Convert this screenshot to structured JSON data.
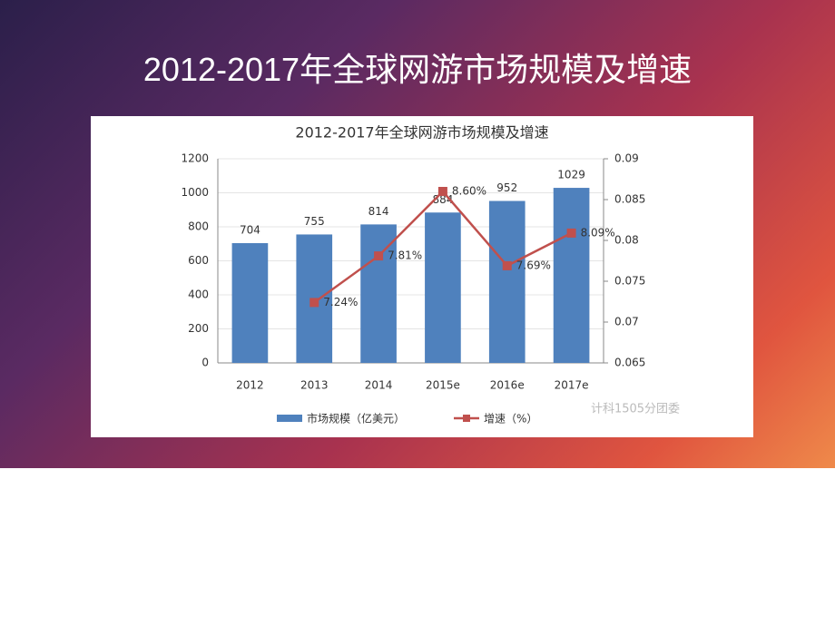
{
  "slide_title": "2012-2017年全球网游市场规模及增速",
  "watermark": "计科1505分团委",
  "chart_data": {
    "type": "bar-line",
    "title": "2012-2017年全球网游市场规模及增速",
    "categories": [
      "2012",
      "2013",
      "2014",
      "2015e",
      "2016e",
      "2017e"
    ],
    "series": [
      {
        "name": "市场规模（亿美元）",
        "type": "bar",
        "color": "#4f81bd",
        "values": [
          704,
          755,
          814,
          884,
          952,
          1029
        ]
      },
      {
        "name": "增速（%）",
        "type": "line",
        "axis": "y2",
        "color": "#c0504d",
        "values": [
          null,
          0.0724,
          0.0781,
          0.086,
          0.0769,
          0.0809
        ],
        "value_labels": [
          null,
          "7.24%",
          "7.81%",
          "8.60%",
          "7.69%",
          "8.09%"
        ]
      }
    ],
    "ylim": [
      0,
      1200
    ],
    "yticks": [
      0,
      200,
      400,
      600,
      800,
      1000,
      1200
    ],
    "y2lim": [
      0.065,
      0.09
    ],
    "y2ticks": [
      0.065,
      0.07,
      0.075,
      0.08,
      0.085,
      0.09
    ],
    "grid": true,
    "legend": "bottom"
  }
}
